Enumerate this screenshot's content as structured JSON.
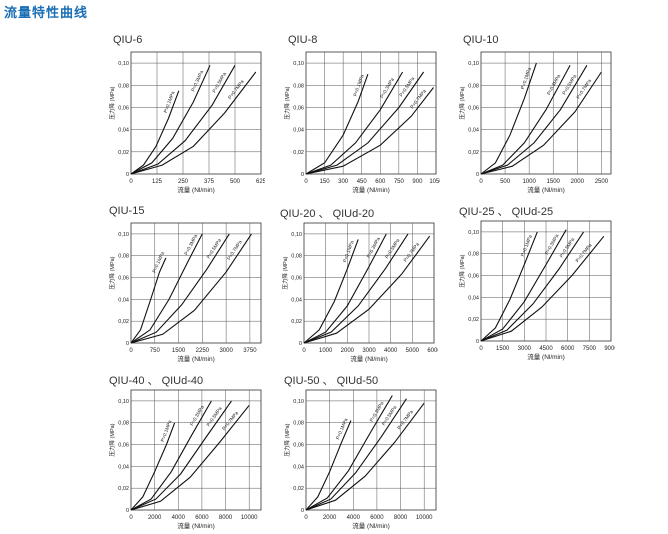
{
  "page_title": "流量特性曲线",
  "chart_data": [
    {
      "type": "line",
      "title": "QIU-6",
      "xlabel": "流量 (Nl/min)",
      "ylabel": "压力降 (MPa)",
      "x_ticks": [
        0,
        125,
        250,
        375,
        500,
        625
      ],
      "y_ticks": [
        0,
        0.02,
        0.04,
        0.06,
        0.08,
        0.1
      ],
      "y_tick_labels": [
        "0",
        "0,02",
        "0,04",
        "0,06",
        "0,08",
        "0,10"
      ],
      "xlim": [
        0,
        625
      ],
      "ylim": [
        0,
        0.11
      ],
      "series": [
        {
          "name": "P=0.1MPa",
          "x": [
            0,
            60,
            120,
            180,
            230
          ],
          "y": [
            0,
            0.008,
            0.025,
            0.05,
            0.075
          ]
        },
        {
          "name": "P=0.3MPa",
          "x": [
            0,
            100,
            200,
            300,
            380
          ],
          "y": [
            0,
            0.01,
            0.032,
            0.065,
            0.098
          ]
        },
        {
          "name": "P=0.5MPa",
          "x": [
            0,
            130,
            260,
            390,
            500
          ],
          "y": [
            0,
            0.009,
            0.03,
            0.062,
            0.098
          ]
        },
        {
          "name": "P=0.7MPa",
          "x": [
            0,
            150,
            300,
            450,
            600
          ],
          "y": [
            0,
            0.008,
            0.025,
            0.055,
            0.092
          ]
        }
      ]
    },
    {
      "type": "line",
      "title": "QIU-8",
      "xlabel": "流量 (Nl/min)",
      "ylabel": "压力降 (MPa)",
      "x_ticks": [
        0,
        150,
        300,
        450,
        600,
        750,
        900,
        1050
      ],
      "y_ticks": [
        0,
        0.02,
        0.04,
        0.06,
        0.08,
        0.1
      ],
      "y_tick_labels": [
        "0",
        "0,02",
        "0,04",
        "0,06",
        "0,08",
        "0,10"
      ],
      "xlim": [
        0,
        1050
      ],
      "ylim": [
        0,
        0.11
      ],
      "series": [
        {
          "name": "P=0.1MPa",
          "x": [
            0,
            150,
            300,
            420,
            500
          ],
          "y": [
            0,
            0.01,
            0.035,
            0.065,
            0.09
          ]
        },
        {
          "name": "P=0.3MPa",
          "x": [
            0,
            200,
            400,
            600,
            780
          ],
          "y": [
            0,
            0.008,
            0.028,
            0.058,
            0.092
          ]
        },
        {
          "name": "P=0.5MPa",
          "x": [
            0,
            250,
            500,
            750,
            950
          ],
          "y": [
            0,
            0.008,
            0.028,
            0.06,
            0.092
          ]
        },
        {
          "name": "P=0.7MPa",
          "x": [
            0,
            300,
            600,
            850,
            1030
          ],
          "y": [
            0,
            0.007,
            0.026,
            0.052,
            0.078
          ]
        }
      ]
    },
    {
      "type": "line",
      "title": "QIU-10",
      "xlabel": "流量 (Nl/min)",
      "ylabel": "压力降 (MPa)",
      "x_ticks": [
        0,
        500,
        1000,
        1500,
        2000,
        2500
      ],
      "y_ticks": [
        0,
        0.02,
        0.04,
        0.06,
        0.08,
        0.1
      ],
      "y_tick_labels": [
        "0",
        "0,02",
        "0,04",
        "0,06",
        "0,08",
        "0,10"
      ],
      "xlim": [
        0,
        2700
      ],
      "ylim": [
        0,
        0.11
      ],
      "series": [
        {
          "name": "P=0.1MPa",
          "x": [
            0,
            300,
            600,
            900,
            1150
          ],
          "y": [
            0,
            0.01,
            0.035,
            0.068,
            0.1
          ]
        },
        {
          "name": "P=0.3MPa",
          "x": [
            0,
            450,
            900,
            1350,
            1850
          ],
          "y": [
            0,
            0.008,
            0.028,
            0.058,
            0.098
          ]
        },
        {
          "name": "P=0.5MPa",
          "x": [
            0,
            550,
            1100,
            1650,
            2200
          ],
          "y": [
            0,
            0.008,
            0.028,
            0.058,
            0.098
          ]
        },
        {
          "name": "P=0.7MPa",
          "x": [
            0,
            650,
            1300,
            1950,
            2500
          ],
          "y": [
            0,
            0.007,
            0.026,
            0.056,
            0.092
          ]
        }
      ]
    },
    {
      "type": "line",
      "title": "QIU-15",
      "xlabel": "流量 (Nl/min)",
      "ylabel": "压力降 (MPa)",
      "x_ticks": [
        0,
        750,
        1500,
        2250,
        3000,
        3750
      ],
      "y_ticks": [
        0,
        0.02,
        0.04,
        0.06,
        0.08,
        0.1
      ],
      "y_tick_labels": [
        "0",
        "0,02",
        "0,04",
        "0,06",
        "0,08",
        "0,10"
      ],
      "xlim": [
        0,
        4100
      ],
      "ylim": [
        0,
        0.11
      ],
      "series": [
        {
          "name": "P=0.1MPa",
          "x": [
            0,
            300,
            600,
            900,
            1100
          ],
          "y": [
            0,
            0.012,
            0.038,
            0.065,
            0.078
          ]
        },
        {
          "name": "P=0.3MPa",
          "x": [
            0,
            600,
            1200,
            1800,
            2250
          ],
          "y": [
            0,
            0.012,
            0.04,
            0.075,
            0.1
          ]
        },
        {
          "name": "P=0.5MPa",
          "x": [
            0,
            800,
            1600,
            2400,
            3100
          ],
          "y": [
            0,
            0.01,
            0.035,
            0.068,
            0.1
          ]
        },
        {
          "name": "P=0.7MPa",
          "x": [
            0,
            1000,
            2000,
            3000,
            3800
          ],
          "y": [
            0,
            0.008,
            0.03,
            0.065,
            0.1
          ]
        }
      ]
    },
    {
      "type": "line",
      "title": "QIU-20 、 QIUd-20",
      "xlabel": "流量 (Nl/min)",
      "ylabel": "压力降 (MPa)",
      "x_ticks": [
        0,
        1000,
        2000,
        3000,
        4000,
        5000,
        6000
      ],
      "y_ticks": [
        0,
        0.02,
        0.04,
        0.06,
        0.08,
        0.1
      ],
      "y_tick_labels": [
        "0",
        "0,02",
        "0,04",
        "0,06",
        "0,08",
        "0,10"
      ],
      "xlim": [
        0,
        6000
      ],
      "ylim": [
        0,
        0.11
      ],
      "series": [
        {
          "name": "P=0.1MPa",
          "x": [
            0,
            700,
            1400,
            2000,
            2500
          ],
          "y": [
            0,
            0.012,
            0.038,
            0.068,
            0.095
          ]
        },
        {
          "name": "P=0.3MPa",
          "x": [
            0,
            1000,
            2000,
            3000,
            3800
          ],
          "y": [
            0,
            0.01,
            0.034,
            0.07,
            0.1
          ]
        },
        {
          "name": "P=0.5MPa",
          "x": [
            0,
            1250,
            2500,
            3750,
            4800
          ],
          "y": [
            0,
            0.01,
            0.034,
            0.068,
            0.1
          ]
        },
        {
          "name": "P=0.7MPa",
          "x": [
            0,
            1500,
            3000,
            4500,
            5800
          ],
          "y": [
            0,
            0.009,
            0.031,
            0.063,
            0.098
          ]
        }
      ]
    },
    {
      "type": "line",
      "title": "QIU-25 、 QIUd-25",
      "xlabel": "流量 (Nl/min)",
      "ylabel": "压力降 (MPa)",
      "x_ticks": [
        0,
        1500,
        3000,
        4500,
        6000,
        7500,
        9000
      ],
      "y_ticks": [
        0,
        0.02,
        0.04,
        0.06,
        0.08,
        0.1
      ],
      "y_tick_labels": [
        "0",
        "0,02",
        "0,04",
        "0,06",
        "0,08",
        "0,10"
      ],
      "xlim": [
        0,
        9000
      ],
      "ylim": [
        0,
        0.11
      ],
      "series": [
        {
          "name": "P=0.1MPa",
          "x": [
            0,
            1000,
            2000,
            3000,
            3900
          ],
          "y": [
            0,
            0.012,
            0.038,
            0.07,
            0.1
          ]
        },
        {
          "name": "P=0.3MPa",
          "x": [
            0,
            1500,
            3000,
            4500,
            5900
          ],
          "y": [
            0,
            0.011,
            0.036,
            0.07,
            0.102
          ]
        },
        {
          "name": "P=0.5MPa",
          "x": [
            0,
            1800,
            3600,
            5400,
            7100
          ],
          "y": [
            0,
            0.01,
            0.034,
            0.066,
            0.1
          ]
        },
        {
          "name": "P=0.7MPa",
          "x": [
            0,
            2100,
            4200,
            6300,
            8500
          ],
          "y": [
            0,
            0.009,
            0.031,
            0.06,
            0.096
          ]
        }
      ]
    },
    {
      "type": "line",
      "title": "QIU-40 、 QIUd-40",
      "xlabel": "流量 (Nl/min)",
      "ylabel": "压力降 (MPa)",
      "x_ticks": [
        0,
        2000,
        4000,
        6000,
        8000,
        10000
      ],
      "y_ticks": [
        0,
        0.02,
        0.04,
        0.06,
        0.08,
        0.1
      ],
      "y_tick_labels": [
        "0",
        "0,02",
        "0,04",
        "0,06",
        "0,08",
        "0,10"
      ],
      "xlim": [
        0,
        11000
      ],
      "ylim": [
        0,
        0.11
      ],
      "series": [
        {
          "name": "P=0.1MPa",
          "x": [
            0,
            1000,
            2000,
            3000,
            3700
          ],
          "y": [
            0,
            0.012,
            0.035,
            0.06,
            0.08
          ]
        },
        {
          "name": "P=0.3MPa",
          "x": [
            0,
            1700,
            3400,
            5100,
            6800
          ],
          "y": [
            0,
            0.01,
            0.035,
            0.068,
            0.1
          ]
        },
        {
          "name": "P=0.5MPa",
          "x": [
            0,
            2100,
            4200,
            6300,
            8500
          ],
          "y": [
            0,
            0.01,
            0.033,
            0.066,
            0.1
          ]
        },
        {
          "name": "P=0.7MPa",
          "x": [
            0,
            2500,
            5000,
            7500,
            10000
          ],
          "y": [
            0,
            0.008,
            0.03,
            0.062,
            0.096
          ]
        }
      ]
    },
    {
      "type": "line",
      "title": "QIU-50 、 QIUd-50",
      "xlabel": "流量 (Nl/min)",
      "ylabel": "压力降 (MPa)",
      "x_ticks": [
        0,
        2000,
        4000,
        6000,
        8000,
        10000
      ],
      "x_tick_labels": [
        "0",
        "2000",
        "4000",
        "6000",
        "8000",
        "10000"
      ],
      "y_ticks": [
        0,
        0.02,
        0.04,
        0.06,
        0.08,
        0.1
      ],
      "y_tick_labels": [
        "0",
        "0,02",
        "0,04",
        "0,06",
        "0,08",
        "0,10"
      ],
      "xlim": [
        0,
        11000
      ],
      "ylim": [
        0,
        0.11
      ],
      "series": [
        {
          "name": "P=0.1MPa",
          "x": [
            0,
            1000,
            2000,
            3000,
            3800
          ],
          "y": [
            0,
            0.012,
            0.035,
            0.062,
            0.082
          ]
        },
        {
          "name": "P=0.3MPa",
          "x": [
            0,
            1800,
            3600,
            5400,
            7300
          ],
          "y": [
            0,
            0.011,
            0.036,
            0.07,
            0.105
          ]
        },
        {
          "name": "P=0.5MPa",
          "x": [
            0,
            2100,
            4200,
            6300,
            8500
          ],
          "y": [
            0,
            0.01,
            0.034,
            0.066,
            0.102
          ]
        },
        {
          "name": "P=0.7MPa",
          "x": [
            0,
            2500,
            5000,
            7500,
            10000
          ],
          "y": [
            0,
            0.009,
            0.031,
            0.062,
            0.098
          ]
        }
      ]
    }
  ]
}
